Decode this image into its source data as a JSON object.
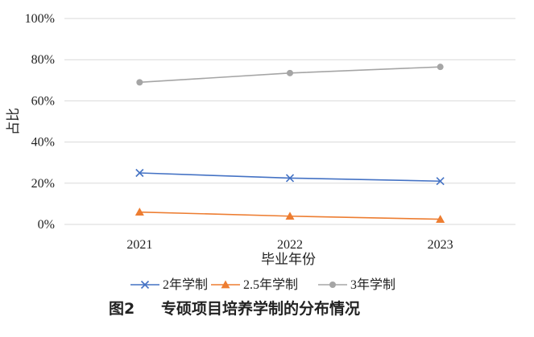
{
  "chart_data": {
    "type": "line",
    "title": "",
    "xlabel": "毕业年份",
    "ylabel": "占比",
    "categories": [
      "2021",
      "2022",
      "2023"
    ],
    "ylim": [
      0,
      100
    ],
    "yticks": [
      "0%",
      "20%",
      "40%",
      "60%",
      "80%",
      "100%"
    ],
    "y_tick_values": [
      0,
      20,
      40,
      60,
      80,
      100
    ],
    "grid": true,
    "legend_position": "bottom",
    "series": [
      {
        "name": "2年学制",
        "values": [
          25,
          22.5,
          21
        ],
        "color": "#4472C4",
        "marker": "x"
      },
      {
        "name": "2.5年学制",
        "values": [
          6,
          4,
          2.5
        ],
        "color": "#ED7D31",
        "marker": "triangle"
      },
      {
        "name": "3年学制",
        "values": [
          69,
          73.5,
          76.5
        ],
        "color": "#A5A5A5",
        "marker": "circle"
      }
    ]
  },
  "caption": {
    "figure_number": "图2",
    "text": "专硕项目培养学制的分布情况"
  }
}
